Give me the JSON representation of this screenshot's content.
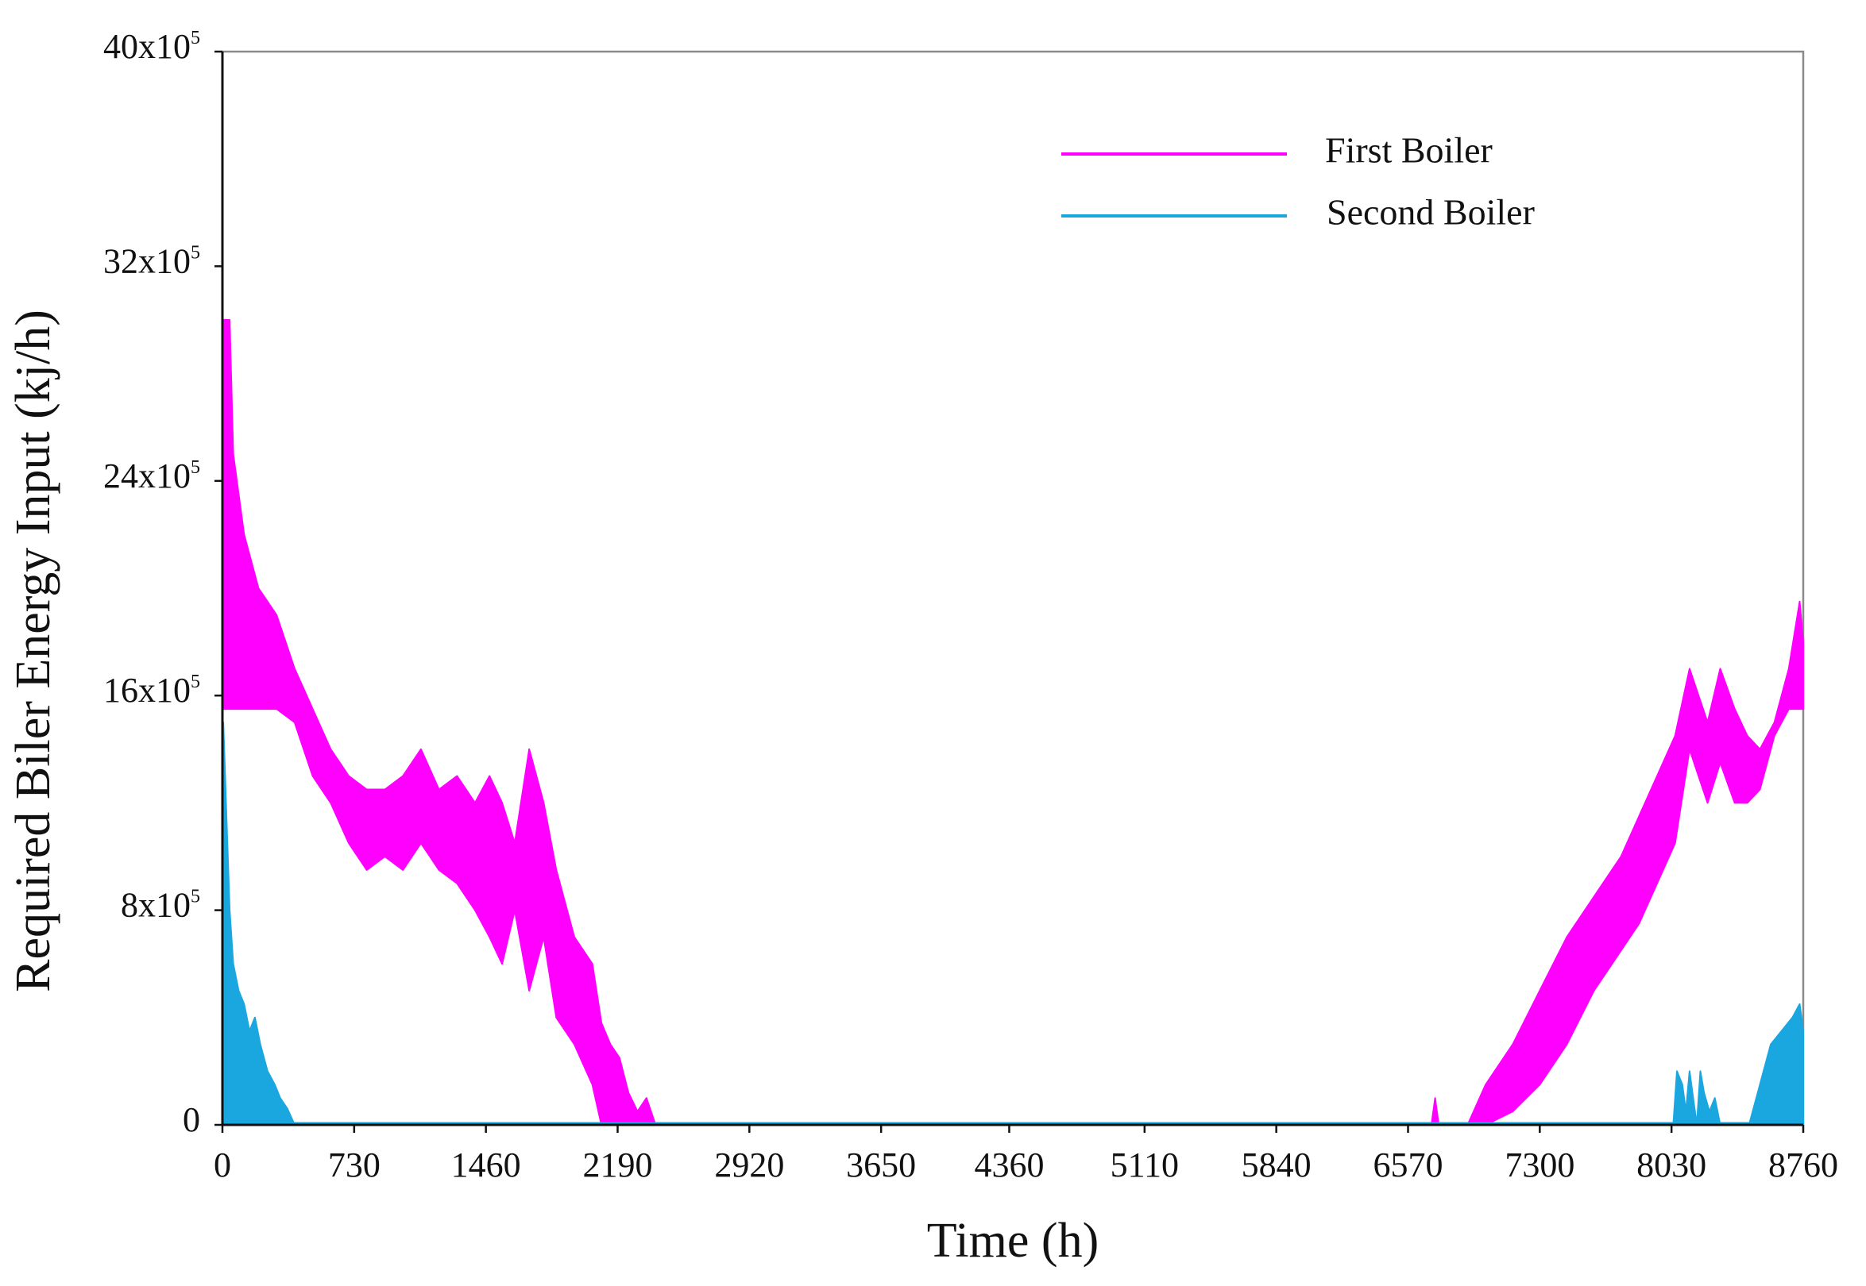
{
  "chart_data": {
    "type": "area",
    "xlabel": "Time (h)",
    "ylabel": "Required Biler Energy Input (kj/h)",
    "xlim": [
      0,
      8760
    ],
    "ylim": [
      0,
      4000000
    ],
    "x_ticks": [
      0,
      730,
      1460,
      2190,
      2920,
      3650,
      4360,
      5110,
      5840,
      6570,
      7300,
      8030,
      8760
    ],
    "x_tick_labels": [
      "0",
      "730",
      "1460",
      "2190",
      "2920",
      "3650",
      "4360",
      "5110",
      "5840",
      "6570",
      "7300",
      "8030",
      "8760"
    ],
    "y_ticks": [
      {
        "value": 0,
        "base": "0",
        "exp": ""
      },
      {
        "value": 800000,
        "base": "8x10",
        "exp": "5"
      },
      {
        "value": 1600000,
        "base": "16x10",
        "exp": "5"
      },
      {
        "value": 2400000,
        "base": "24x10",
        "exp": "5"
      },
      {
        "value": 3200000,
        "base": "32x10",
        "exp": "5"
      },
      {
        "value": 4000000,
        "base": "40x10",
        "exp": "5"
      }
    ],
    "legend_position": "top-right",
    "grid": false,
    "series": [
      {
        "name": "First Boiler",
        "color": "#ff00ff",
        "upper": [
          [
            0,
            3000000
          ],
          [
            40,
            3000000
          ],
          [
            60,
            2500000
          ],
          [
            120,
            2200000
          ],
          [
            200,
            2000000
          ],
          [
            300,
            1900000
          ],
          [
            400,
            1700000
          ],
          [
            500,
            1550000
          ],
          [
            600,
            1400000
          ],
          [
            700,
            1300000
          ],
          [
            800,
            1250000
          ],
          [
            900,
            1250000
          ],
          [
            1000,
            1300000
          ],
          [
            1100,
            1400000
          ],
          [
            1200,
            1250000
          ],
          [
            1300,
            1300000
          ],
          [
            1400,
            1200000
          ],
          [
            1480,
            1300000
          ],
          [
            1550,
            1200000
          ],
          [
            1620,
            1050000
          ],
          [
            1700,
            1400000
          ],
          [
            1780,
            1200000
          ],
          [
            1850,
            950000
          ],
          [
            1950,
            700000
          ],
          [
            2050,
            600000
          ],
          [
            2100,
            380000
          ],
          [
            2150,
            300000
          ],
          [
            2200,
            250000
          ],
          [
            2250,
            120000
          ],
          [
            2300,
            50000
          ],
          [
            2350,
            100000
          ],
          [
            2400,
            0
          ],
          [
            6700,
            0
          ],
          [
            6720,
            100000
          ],
          [
            6740,
            0
          ],
          [
            6900,
            0
          ],
          [
            7000,
            150000
          ],
          [
            7150,
            300000
          ],
          [
            7300,
            500000
          ],
          [
            7450,
            700000
          ],
          [
            7600,
            850000
          ],
          [
            7750,
            1000000
          ],
          [
            7850,
            1150000
          ],
          [
            7950,
            1300000
          ],
          [
            8050,
            1450000
          ],
          [
            8130,
            1700000
          ],
          [
            8180,
            1600000
          ],
          [
            8230,
            1500000
          ],
          [
            8300,
            1700000
          ],
          [
            8380,
            1550000
          ],
          [
            8450,
            1450000
          ],
          [
            8520,
            1400000
          ],
          [
            8600,
            1500000
          ],
          [
            8680,
            1700000
          ],
          [
            8740,
            1950000
          ],
          [
            8760,
            1800000
          ]
        ],
        "lower": [
          [
            0,
            1550000
          ],
          [
            150,
            1550000
          ],
          [
            300,
            1550000
          ],
          [
            400,
            1500000
          ],
          [
            500,
            1300000
          ],
          [
            600,
            1200000
          ],
          [
            700,
            1050000
          ],
          [
            800,
            950000
          ],
          [
            900,
            1000000
          ],
          [
            1000,
            950000
          ],
          [
            1100,
            1050000
          ],
          [
            1200,
            950000
          ],
          [
            1300,
            900000
          ],
          [
            1400,
            800000
          ],
          [
            1480,
            700000
          ],
          [
            1550,
            600000
          ],
          [
            1620,
            800000
          ],
          [
            1700,
            500000
          ],
          [
            1780,
            700000
          ],
          [
            1850,
            400000
          ],
          [
            1950,
            300000
          ],
          [
            2050,
            150000
          ],
          [
            2100,
            0
          ],
          [
            2200,
            0
          ],
          [
            6700,
            0
          ],
          [
            6900,
            0
          ],
          [
            7000,
            0
          ],
          [
            7150,
            50000
          ],
          [
            7300,
            150000
          ],
          [
            7450,
            300000
          ],
          [
            7600,
            500000
          ],
          [
            7750,
            650000
          ],
          [
            7850,
            750000
          ],
          [
            7950,
            900000
          ],
          [
            8050,
            1050000
          ],
          [
            8130,
            1400000
          ],
          [
            8180,
            1300000
          ],
          [
            8230,
            1200000
          ],
          [
            8300,
            1350000
          ],
          [
            8380,
            1200000
          ],
          [
            8450,
            1200000
          ],
          [
            8520,
            1250000
          ],
          [
            8600,
            1450000
          ],
          [
            8680,
            1550000
          ],
          [
            8740,
            1550000
          ],
          [
            8760,
            1550000
          ]
        ]
      },
      {
        "name": "Second Boiler",
        "color": "#1aa7e0",
        "values": [
          [
            0,
            0
          ],
          [
            5,
            1500000
          ],
          [
            20,
            1200000
          ],
          [
            40,
            800000
          ],
          [
            60,
            600000
          ],
          [
            90,
            500000
          ],
          [
            120,
            450000
          ],
          [
            150,
            350000
          ],
          [
            180,
            400000
          ],
          [
            210,
            300000
          ],
          [
            250,
            200000
          ],
          [
            290,
            150000
          ],
          [
            320,
            100000
          ],
          [
            360,
            60000
          ],
          [
            400,
            0
          ],
          [
            8040,
            0
          ],
          [
            8060,
            200000
          ],
          [
            8090,
            150000
          ],
          [
            8110,
            50000
          ],
          [
            8130,
            200000
          ],
          [
            8150,
            100000
          ],
          [
            8170,
            0
          ],
          [
            8190,
            200000
          ],
          [
            8210,
            120000
          ],
          [
            8240,
            50000
          ],
          [
            8270,
            100000
          ],
          [
            8300,
            0
          ],
          [
            8460,
            0
          ],
          [
            8520,
            150000
          ],
          [
            8580,
            300000
          ],
          [
            8640,
            350000
          ],
          [
            8700,
            400000
          ],
          [
            8740,
            450000
          ],
          [
            8760,
            350000
          ]
        ]
      }
    ]
  }
}
